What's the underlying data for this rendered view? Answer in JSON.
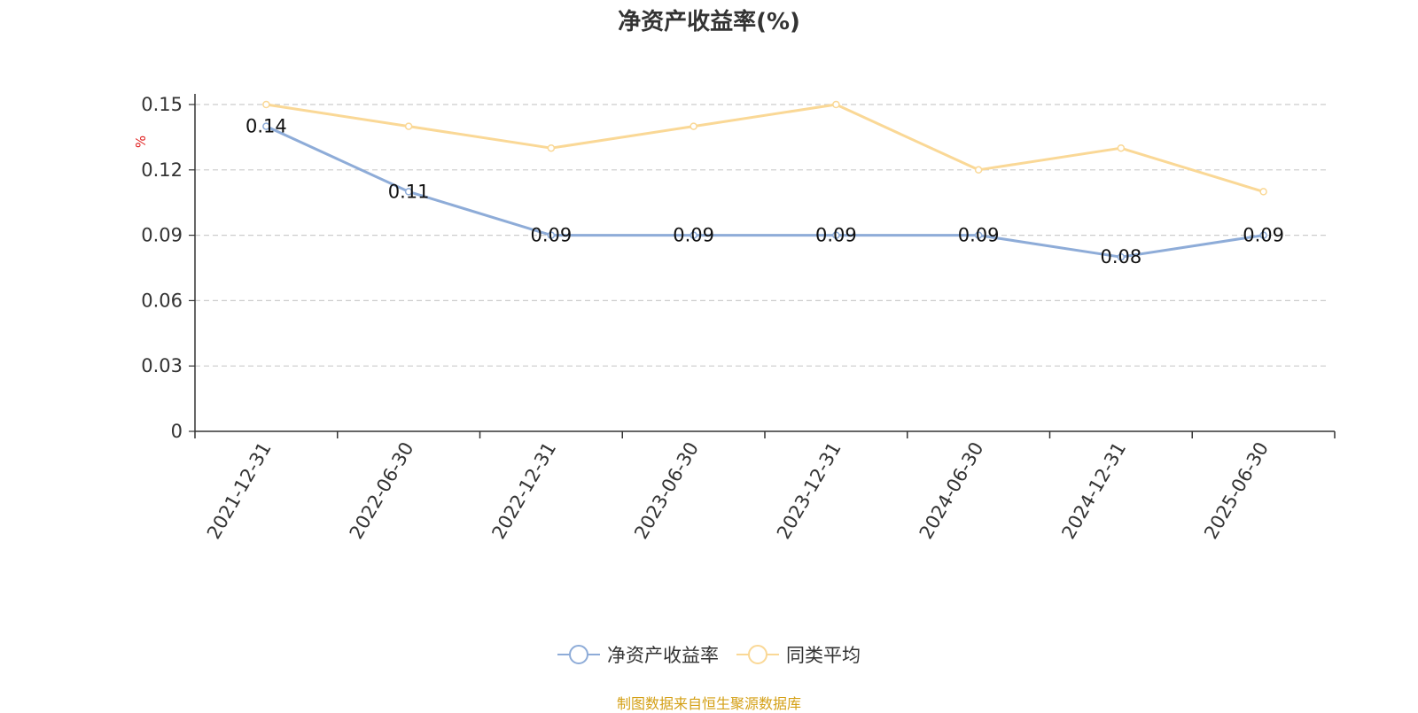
{
  "chart_data": {
    "type": "line",
    "title": "净资产收益率(%)",
    "ylabel": "%",
    "xlabel": "",
    "categories": [
      "2021-12-31",
      "2022-06-30",
      "2022-12-31",
      "2023-06-30",
      "2023-12-31",
      "2024-06-30",
      "2024-12-31",
      "2025-06-30"
    ],
    "ylim": [
      0,
      0.15
    ],
    "yticks": [
      "0",
      "0.03",
      "0.06",
      "0.09",
      "0.12",
      "0.15"
    ],
    "grid": true,
    "legend_position": "bottom",
    "series": [
      {
        "name": "净资产收益率",
        "color": "#8eacd8",
        "values": [
          0.14,
          0.11,
          0.09,
          0.09,
          0.09,
          0.09,
          0.08,
          0.09
        ],
        "labels": [
          "0.14",
          "0.11",
          "0.09",
          "0.09",
          "0.09",
          "0.09",
          "0.08",
          "0.09"
        ]
      },
      {
        "name": "同类平均",
        "color": "#fad896",
        "values": [
          0.15,
          0.14,
          0.13,
          0.14,
          0.15,
          0.12,
          0.13,
          0.11
        ]
      }
    ]
  },
  "source_note": "制图数据来自恒生聚源数据库",
  "colors": {
    "axis": "#333333",
    "grid": "#cccccc",
    "ylabel": "#e02020",
    "source": "#d4a017"
  }
}
